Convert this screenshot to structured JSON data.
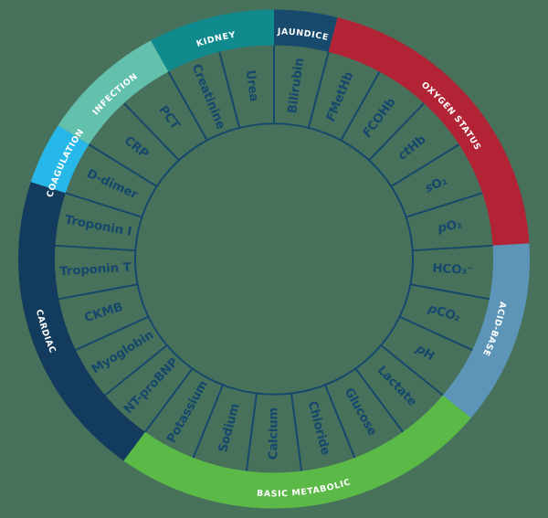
{
  "background_color": "#47715A",
  "wheel": {
    "line_color": "#15486C",
    "param_text_color": "#15486C",
    "category_text_color": "#FFFFFF",
    "categories": [
      {
        "id": "jaundice",
        "label": "JAUNDICE",
        "color": "#174A6C",
        "flip": false,
        "params": [
          {
            "label": "Bilirubin",
            "italic": 0
          }
        ]
      },
      {
        "id": "oxygen-status",
        "label": "OXYGEN STATUS",
        "color": "#B22335",
        "flip": false,
        "params": [
          {
            "label": "FMetHb",
            "italic": 1
          },
          {
            "label": "FCOHb",
            "italic": 1
          },
          {
            "label": "ctHb",
            "italic": 2
          },
          {
            "label": "sO₂",
            "italic": 1
          },
          {
            "label": "pO₂",
            "italic": 1
          }
        ]
      },
      {
        "id": "acid-base",
        "label": "ACID-BASE",
        "color": "#5C95B7",
        "flip": false,
        "params": [
          {
            "label": "HCO₃⁻",
            "italic": 0
          },
          {
            "label": "pCO₂",
            "italic": 1
          },
          {
            "label": "pH",
            "italic": 1
          }
        ]
      },
      {
        "id": "basic-metabolic",
        "label": "BASIC METABOLIC",
        "color": "#5BBA47",
        "flip": true,
        "params": [
          {
            "label": "Lactate",
            "italic": 0
          },
          {
            "label": "Glucose",
            "italic": 0
          },
          {
            "label": "Chloride",
            "italic": 0
          },
          {
            "label": "Calcium",
            "italic": 0
          },
          {
            "label": "Sodium",
            "italic": 0
          },
          {
            "label": "Potassium",
            "italic": 0
          }
        ]
      },
      {
        "id": "cardiac",
        "label": "CARDIAC",
        "color": "#133B5D",
        "flip": true,
        "params": [
          {
            "label": "NT-proBNP",
            "italic": 0
          },
          {
            "label": "Myoglobin",
            "italic": 0
          },
          {
            "label": "CKMB",
            "italic": 0
          },
          {
            "label": "Troponin T",
            "italic": 0
          },
          {
            "label": "Troponin I",
            "italic": 0
          }
        ]
      },
      {
        "id": "coagulation",
        "label": "COAGULATION",
        "color": "#28B7E9",
        "flip": false,
        "params": [
          {
            "label": "D-dimer",
            "italic": 0
          }
        ]
      },
      {
        "id": "infection",
        "label": "INFECTION",
        "color": "#63C0AC",
        "flip": false,
        "params": [
          {
            "label": "CRP",
            "italic": 0
          },
          {
            "label": "PCT",
            "italic": 0
          }
        ]
      },
      {
        "id": "kidney",
        "label": "KIDNEY",
        "color": "#108A8C",
        "flip": false,
        "params": [
          {
            "label": "Creatinine",
            "italic": 0
          },
          {
            "label": "Urea",
            "italic": 0
          }
        ]
      }
    ]
  }
}
